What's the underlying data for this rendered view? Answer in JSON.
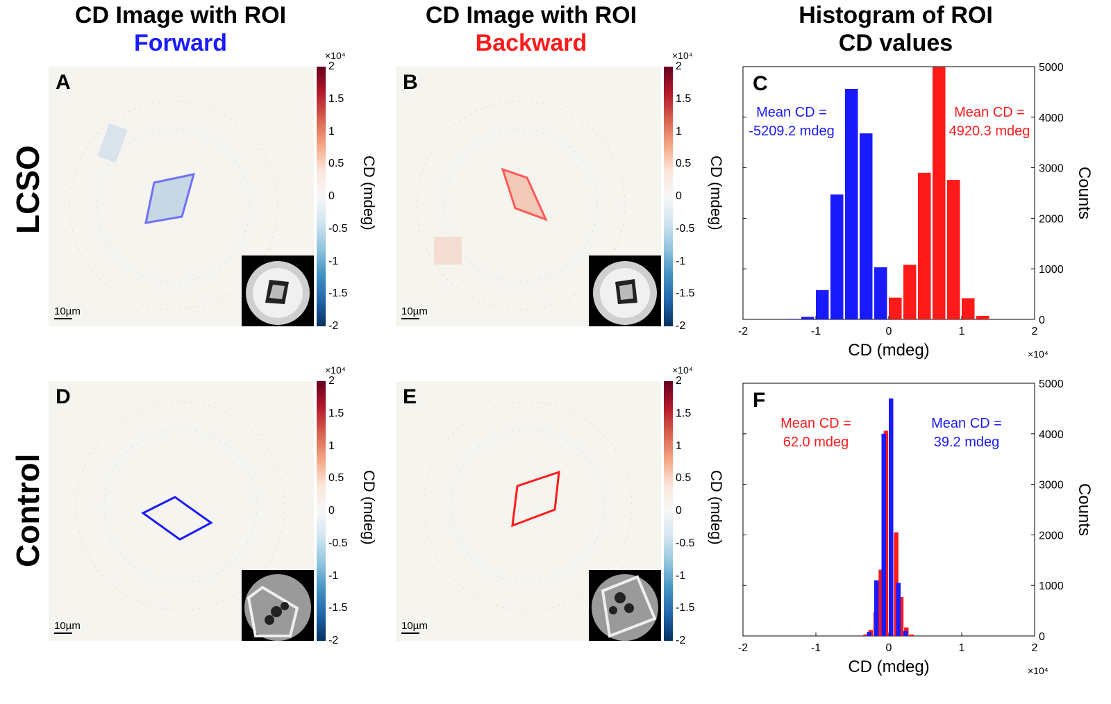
{
  "headers": {
    "col1_line1": "CD Image with ROI",
    "col1_line2": "Forward",
    "col1_color": "#1a1aff",
    "col2_line1": "CD Image with ROI",
    "col2_line2": "Backward",
    "col2_color": "#ff1a1a",
    "col3_line1": "Histogram of ROI",
    "col3_line2": "CD values"
  },
  "row_labels": {
    "top": "LCSO",
    "bottom": "Control"
  },
  "panels": {
    "A": {
      "letter": "A",
      "scale": "10µm",
      "roi_color": "#1a1aff"
    },
    "B": {
      "letter": "B",
      "scale": "10µm",
      "roi_color": "#ff1a1a"
    },
    "D": {
      "letter": "D",
      "scale": "10µm",
      "roi_color": "#1a1aff"
    },
    "E": {
      "letter": "E",
      "scale": "10µm",
      "roi_color": "#ff1a1a"
    }
  },
  "colorbar": {
    "ticks": [
      "2",
      "1.5",
      "1",
      "0.5",
      "0",
      "-0.5",
      "-1",
      "-1.5",
      "-2"
    ],
    "exponent": "×10⁴",
    "label": "CD (mdeg)",
    "colors": [
      "#67001f",
      "#f7f7f7",
      "#053061"
    ]
  },
  "chart_data": [
    {
      "type": "bar",
      "panel": "C",
      "xlabel": "CD (mdeg)",
      "ylabel": "Counts",
      "x_exponent": "×10⁴",
      "xlim": [
        -2,
        2
      ],
      "ylim": [
        0,
        5000
      ],
      "xticks": [
        "-2",
        "-1",
        "0",
        "1",
        "2"
      ],
      "yticks": [
        "0",
        "1000",
        "2000",
        "3000",
        "4000",
        "5000"
      ],
      "series": [
        {
          "color": "#1a1aff",
          "bins": [
            -1.4,
            -1.2,
            -1.0,
            -0.8,
            -0.6,
            -0.4,
            -0.2,
            0.0
          ],
          "values": [
            10,
            50,
            580,
            2470,
            4560,
            3680,
            1030,
            270
          ],
          "annotation": [
            "Mean CD =",
            "-5209.2 mdeg"
          ]
        },
        {
          "color": "#ff1a1a",
          "bins": [
            0.0,
            0.2,
            0.4,
            0.6,
            0.8,
            1.0,
            1.2
          ],
          "values": [
            430,
            1080,
            2900,
            4990,
            2760,
            420,
            70
          ],
          "annotation": [
            "Mean CD =",
            "4920.3 mdeg"
          ]
        }
      ],
      "bin_width": 0.2
    },
    {
      "type": "bar",
      "panel": "F",
      "xlabel": "CD (mdeg)",
      "ylabel": "Counts",
      "x_exponent": "×10⁴",
      "xlim": [
        -2,
        2
      ],
      "ylim": [
        0,
        5000
      ],
      "xticks": [
        "-2",
        "-1",
        "0",
        "1",
        "2"
      ],
      "yticks": [
        "0",
        "1000",
        "2000",
        "3000",
        "4000",
        "5000"
      ],
      "series": [
        {
          "color": "#ff1a1a",
          "bins": [
            -0.35,
            -0.28,
            -0.21,
            -0.14,
            -0.07,
            0.0,
            0.07,
            0.14,
            0.21,
            0.28
          ],
          "values": [
            30,
            120,
            480,
            1310,
            4060,
            4310,
            2050,
            770,
            170,
            30
          ],
          "annotation": [
            "Mean CD =",
            "62.0 mdeg"
          ]
        },
        {
          "color": "#1a1aff",
          "bins": [
            -0.3,
            -0.2,
            -0.1,
            0.0,
            0.1,
            0.2
          ],
          "values": [
            80,
            1100,
            4000,
            4700,
            1050,
            100
          ],
          "annotation": [
            "Mean CD =",
            "39.2 mdeg"
          ]
        }
      ],
      "bin_width": 0.07
    }
  ]
}
